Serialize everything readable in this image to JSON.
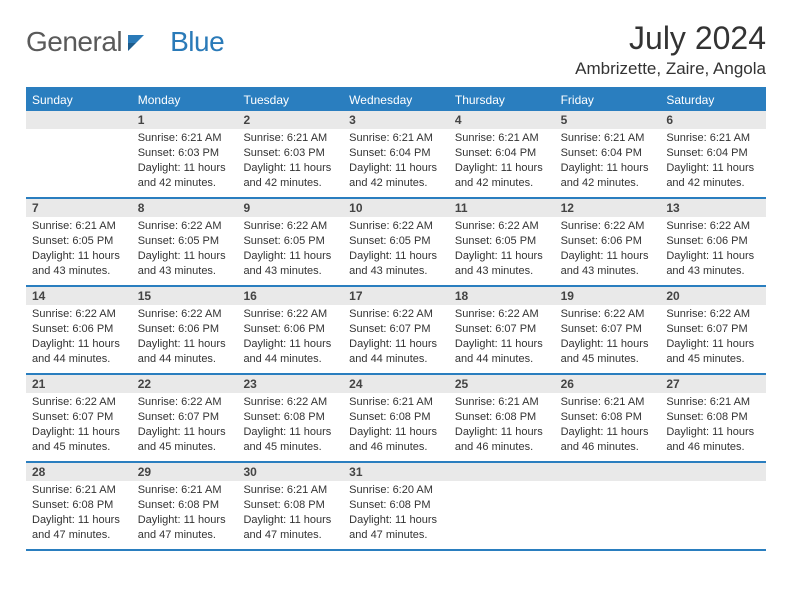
{
  "logo": {
    "word1": "General",
    "word2": "Blue",
    "icon_color": "#2a7ab8"
  },
  "header": {
    "month_title": "July 2024",
    "location": "Ambrizette, Zaire, Angola"
  },
  "colors": {
    "header_bg": "#2a7ebf",
    "header_text": "#ffffff",
    "daynum_bg": "#e9e9e9",
    "border": "#2a7ebf",
    "body_text": "#333333",
    "logo_gray": "#5a5a5a",
    "logo_blue": "#2a7ab8"
  },
  "weekdays": [
    "Sunday",
    "Monday",
    "Tuesday",
    "Wednesday",
    "Thursday",
    "Friday",
    "Saturday"
  ],
  "weeks": [
    [
      {
        "num": "",
        "sunrise": "",
        "sunset": "",
        "daylight1": "",
        "daylight2": ""
      },
      {
        "num": "1",
        "sunrise": "Sunrise: 6:21 AM",
        "sunset": "Sunset: 6:03 PM",
        "daylight1": "Daylight: 11 hours",
        "daylight2": "and 42 minutes."
      },
      {
        "num": "2",
        "sunrise": "Sunrise: 6:21 AM",
        "sunset": "Sunset: 6:03 PM",
        "daylight1": "Daylight: 11 hours",
        "daylight2": "and 42 minutes."
      },
      {
        "num": "3",
        "sunrise": "Sunrise: 6:21 AM",
        "sunset": "Sunset: 6:04 PM",
        "daylight1": "Daylight: 11 hours",
        "daylight2": "and 42 minutes."
      },
      {
        "num": "4",
        "sunrise": "Sunrise: 6:21 AM",
        "sunset": "Sunset: 6:04 PM",
        "daylight1": "Daylight: 11 hours",
        "daylight2": "and 42 minutes."
      },
      {
        "num": "5",
        "sunrise": "Sunrise: 6:21 AM",
        "sunset": "Sunset: 6:04 PM",
        "daylight1": "Daylight: 11 hours",
        "daylight2": "and 42 minutes."
      },
      {
        "num": "6",
        "sunrise": "Sunrise: 6:21 AM",
        "sunset": "Sunset: 6:04 PM",
        "daylight1": "Daylight: 11 hours",
        "daylight2": "and 42 minutes."
      }
    ],
    [
      {
        "num": "7",
        "sunrise": "Sunrise: 6:21 AM",
        "sunset": "Sunset: 6:05 PM",
        "daylight1": "Daylight: 11 hours",
        "daylight2": "and 43 minutes."
      },
      {
        "num": "8",
        "sunrise": "Sunrise: 6:22 AM",
        "sunset": "Sunset: 6:05 PM",
        "daylight1": "Daylight: 11 hours",
        "daylight2": "and 43 minutes."
      },
      {
        "num": "9",
        "sunrise": "Sunrise: 6:22 AM",
        "sunset": "Sunset: 6:05 PM",
        "daylight1": "Daylight: 11 hours",
        "daylight2": "and 43 minutes."
      },
      {
        "num": "10",
        "sunrise": "Sunrise: 6:22 AM",
        "sunset": "Sunset: 6:05 PM",
        "daylight1": "Daylight: 11 hours",
        "daylight2": "and 43 minutes."
      },
      {
        "num": "11",
        "sunrise": "Sunrise: 6:22 AM",
        "sunset": "Sunset: 6:05 PM",
        "daylight1": "Daylight: 11 hours",
        "daylight2": "and 43 minutes."
      },
      {
        "num": "12",
        "sunrise": "Sunrise: 6:22 AM",
        "sunset": "Sunset: 6:06 PM",
        "daylight1": "Daylight: 11 hours",
        "daylight2": "and 43 minutes."
      },
      {
        "num": "13",
        "sunrise": "Sunrise: 6:22 AM",
        "sunset": "Sunset: 6:06 PM",
        "daylight1": "Daylight: 11 hours",
        "daylight2": "and 43 minutes."
      }
    ],
    [
      {
        "num": "14",
        "sunrise": "Sunrise: 6:22 AM",
        "sunset": "Sunset: 6:06 PM",
        "daylight1": "Daylight: 11 hours",
        "daylight2": "and 44 minutes."
      },
      {
        "num": "15",
        "sunrise": "Sunrise: 6:22 AM",
        "sunset": "Sunset: 6:06 PM",
        "daylight1": "Daylight: 11 hours",
        "daylight2": "and 44 minutes."
      },
      {
        "num": "16",
        "sunrise": "Sunrise: 6:22 AM",
        "sunset": "Sunset: 6:06 PM",
        "daylight1": "Daylight: 11 hours",
        "daylight2": "and 44 minutes."
      },
      {
        "num": "17",
        "sunrise": "Sunrise: 6:22 AM",
        "sunset": "Sunset: 6:07 PM",
        "daylight1": "Daylight: 11 hours",
        "daylight2": "and 44 minutes."
      },
      {
        "num": "18",
        "sunrise": "Sunrise: 6:22 AM",
        "sunset": "Sunset: 6:07 PM",
        "daylight1": "Daylight: 11 hours",
        "daylight2": "and 44 minutes."
      },
      {
        "num": "19",
        "sunrise": "Sunrise: 6:22 AM",
        "sunset": "Sunset: 6:07 PM",
        "daylight1": "Daylight: 11 hours",
        "daylight2": "and 45 minutes."
      },
      {
        "num": "20",
        "sunrise": "Sunrise: 6:22 AM",
        "sunset": "Sunset: 6:07 PM",
        "daylight1": "Daylight: 11 hours",
        "daylight2": "and 45 minutes."
      }
    ],
    [
      {
        "num": "21",
        "sunrise": "Sunrise: 6:22 AM",
        "sunset": "Sunset: 6:07 PM",
        "daylight1": "Daylight: 11 hours",
        "daylight2": "and 45 minutes."
      },
      {
        "num": "22",
        "sunrise": "Sunrise: 6:22 AM",
        "sunset": "Sunset: 6:07 PM",
        "daylight1": "Daylight: 11 hours",
        "daylight2": "and 45 minutes."
      },
      {
        "num": "23",
        "sunrise": "Sunrise: 6:22 AM",
        "sunset": "Sunset: 6:08 PM",
        "daylight1": "Daylight: 11 hours",
        "daylight2": "and 45 minutes."
      },
      {
        "num": "24",
        "sunrise": "Sunrise: 6:21 AM",
        "sunset": "Sunset: 6:08 PM",
        "daylight1": "Daylight: 11 hours",
        "daylight2": "and 46 minutes."
      },
      {
        "num": "25",
        "sunrise": "Sunrise: 6:21 AM",
        "sunset": "Sunset: 6:08 PM",
        "daylight1": "Daylight: 11 hours",
        "daylight2": "and 46 minutes."
      },
      {
        "num": "26",
        "sunrise": "Sunrise: 6:21 AM",
        "sunset": "Sunset: 6:08 PM",
        "daylight1": "Daylight: 11 hours",
        "daylight2": "and 46 minutes."
      },
      {
        "num": "27",
        "sunrise": "Sunrise: 6:21 AM",
        "sunset": "Sunset: 6:08 PM",
        "daylight1": "Daylight: 11 hours",
        "daylight2": "and 46 minutes."
      }
    ],
    [
      {
        "num": "28",
        "sunrise": "Sunrise: 6:21 AM",
        "sunset": "Sunset: 6:08 PM",
        "daylight1": "Daylight: 11 hours",
        "daylight2": "and 47 minutes."
      },
      {
        "num": "29",
        "sunrise": "Sunrise: 6:21 AM",
        "sunset": "Sunset: 6:08 PM",
        "daylight1": "Daylight: 11 hours",
        "daylight2": "and 47 minutes."
      },
      {
        "num": "30",
        "sunrise": "Sunrise: 6:21 AM",
        "sunset": "Sunset: 6:08 PM",
        "daylight1": "Daylight: 11 hours",
        "daylight2": "and 47 minutes."
      },
      {
        "num": "31",
        "sunrise": "Sunrise: 6:20 AM",
        "sunset": "Sunset: 6:08 PM",
        "daylight1": "Daylight: 11 hours",
        "daylight2": "and 47 minutes."
      },
      {
        "num": "",
        "sunrise": "",
        "sunset": "",
        "daylight1": "",
        "daylight2": ""
      },
      {
        "num": "",
        "sunrise": "",
        "sunset": "",
        "daylight1": "",
        "daylight2": ""
      },
      {
        "num": "",
        "sunrise": "",
        "sunset": "",
        "daylight1": "",
        "daylight2": ""
      }
    ]
  ]
}
